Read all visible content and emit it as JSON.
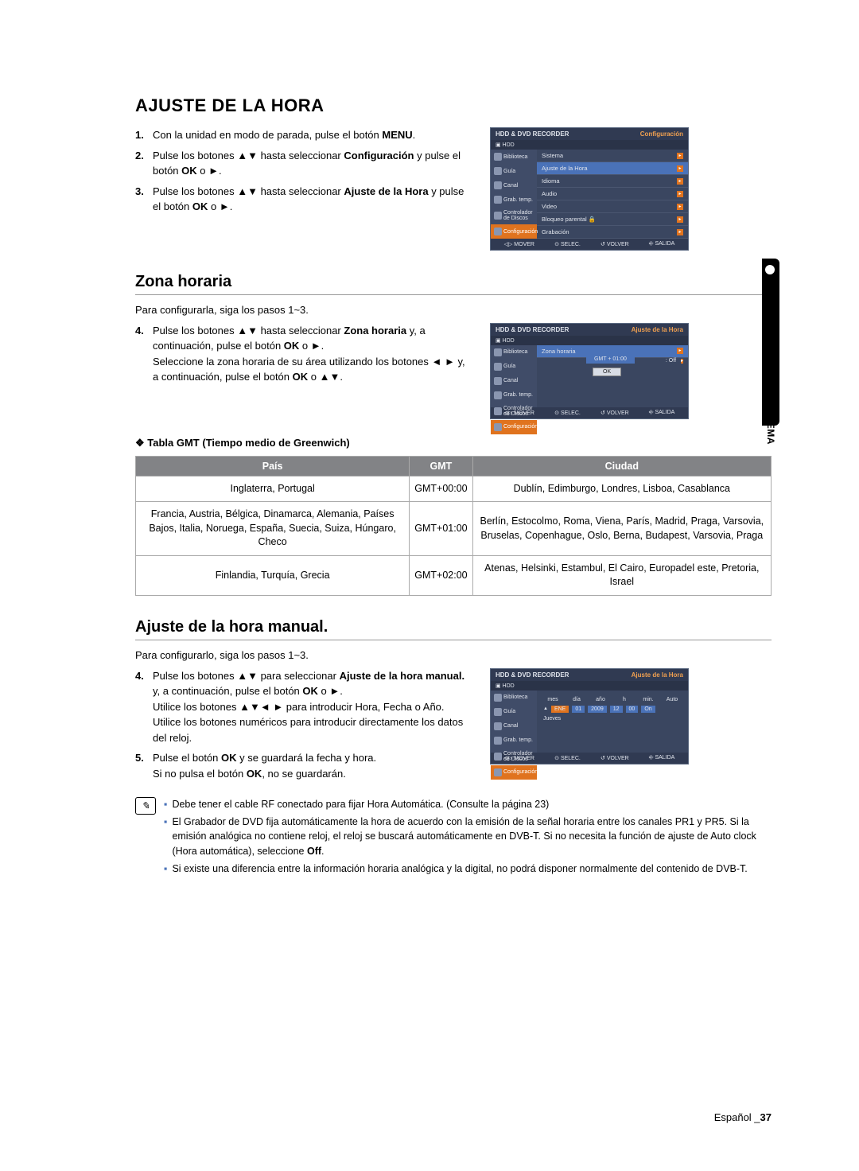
{
  "side_tab_label": "CONFIGURACIÓN DEL SISTEMA",
  "main_title": "AJUSTE DE LA HORA",
  "intro_steps": [
    "Con la unidad en modo de parada, pulse el botón <b>MENU</b>.",
    "Pulse los botones ▲▼ hasta seleccionar <b>Configuración</b> y pulse el botón <b>OK</b> o ►.",
    "Pulse los botones ▲▼ hasta seleccionar <b>Ajuste de la Hora</b> y pulse el botón <b>OK</b> o ►."
  ],
  "osd1": {
    "title_left": "HDD & DVD RECORDER",
    "title_right": "Configuración",
    "hdd": "▣ HDD",
    "side": [
      "Biblioteca",
      "Guía",
      "Canal",
      "Grab. temp.",
      "Controlador de Discos",
      "Configuración"
    ],
    "side_selected": 5,
    "main": [
      "Sistema",
      "Ajuste de la Hora",
      "Idioma",
      "Audio",
      "Video",
      "Bloqueo parental  🔒",
      "Grabación"
    ],
    "main_selected": 1,
    "footer": [
      "◁▷ MOVER",
      "⊙ SELEC.",
      "↺ VOLVER",
      "⎆ SALIDA"
    ]
  },
  "zona": {
    "title": "Zona horaria",
    "intro": "Para configurarla, siga los pasos 1~3.",
    "step4": "Pulse los botones ▲▼ hasta seleccionar <b>Zona horaria</b> y, a continuación, pulse el botón <b>OK</b> o ►.<br>Seleccione la zona horaria de su área utilizando los botones ◄ ► y, a continuación, pulse el botón <b>OK</b> o ▲▼."
  },
  "osd2": {
    "title_left": "HDD & DVD RECORDER",
    "title_right": "Ajuste de la Hora",
    "hdd": "▣ HDD",
    "popup_label": "Zona horaria",
    "gmt": "GMT + 01:00",
    "ok": "OK",
    "extra": ": Off",
    "footer": [
      "◁▷ MOVER",
      "⊙ SELEC.",
      "↺ VOLVER",
      "⎆ SALIDA"
    ]
  },
  "table_caption": "❖ Tabla GMT (Tiempo medio de Greenwich)",
  "table": {
    "headers": [
      "País",
      "GMT",
      "Ciudad"
    ],
    "rows": [
      [
        "Inglaterra, Portugal",
        "GMT+00:00",
        "Dublín, Edimburgo, Londres, Lisboa, Casablanca"
      ],
      [
        "Francia, Austria, Bélgica, Dinamarca, Alemania, Países Bajos, Italia, Noruega, España, Suecia, Suiza, Húngaro, Checo",
        "GMT+01:00",
        "Berlín, Estocolmo, Roma, Viena, París, Madrid, Praga, Varsovia, Bruselas, Copenhague, Oslo, Berna, Budapest, Varsovia, Praga"
      ],
      [
        "Finlandia, Turquía, Grecia",
        "GMT+02:00",
        "Atenas, Helsinki, Estambul, El Cairo, Europadel este, Pretoria, Israel"
      ]
    ]
  },
  "manual": {
    "title": "Ajuste de la hora manual.",
    "intro": "Para configurarlo, siga los pasos 1~3.",
    "step4": "Pulse los botones ▲▼ para seleccionar <b>Ajuste de la hora manual.</b> y, a continuación, pulse el botón <b>OK</b> o ►.<br>Utilice los botones ▲▼◄ ► para introducir Hora, Fecha o Año.<br>Utilice los botones numéricos para introducir directamente los datos del reloj.",
    "step5": "Pulse el botón <b>OK</b> y se guardará la fecha y hora.<br>Si no pulsa el botón <b>OK</b>, no se guardarán."
  },
  "osd3": {
    "title_left": "HDD & DVD RECORDER",
    "title_right": "Ajuste de la Hora",
    "hdd": "▣ HDD",
    "headers": [
      "mes",
      "día",
      "año",
      "h",
      "min.",
      "Auto"
    ],
    "values": [
      "ENE",
      "01",
      "2009",
      "12",
      "00",
      "On"
    ],
    "day": "Jueves",
    "footer": [
      "◁▷ MOVER",
      "⊙ SELEC.",
      "↺ VOLVER",
      "⎆ SALIDA"
    ]
  },
  "notes": [
    "Debe tener el cable RF conectado para fijar Hora Automática. (Consulte la página 23)",
    "El Grabador de DVD fija automáticamente la hora de acuerdo con la emisión de la señal horaria entre los canales PR1 y PR5. Si la emisión analógica no contiene reloj, el reloj se buscará automáticamente en DVB-T. Si no necesita la función de ajuste de Auto clock (Hora automática), seleccione <b>Off</b>.",
    "Si existe una diferencia entre la información horaria analógica y la digital, no podrá disponer normalmente del contenido de DVB-T."
  ],
  "footer_lang": "Español _",
  "footer_page": "37"
}
